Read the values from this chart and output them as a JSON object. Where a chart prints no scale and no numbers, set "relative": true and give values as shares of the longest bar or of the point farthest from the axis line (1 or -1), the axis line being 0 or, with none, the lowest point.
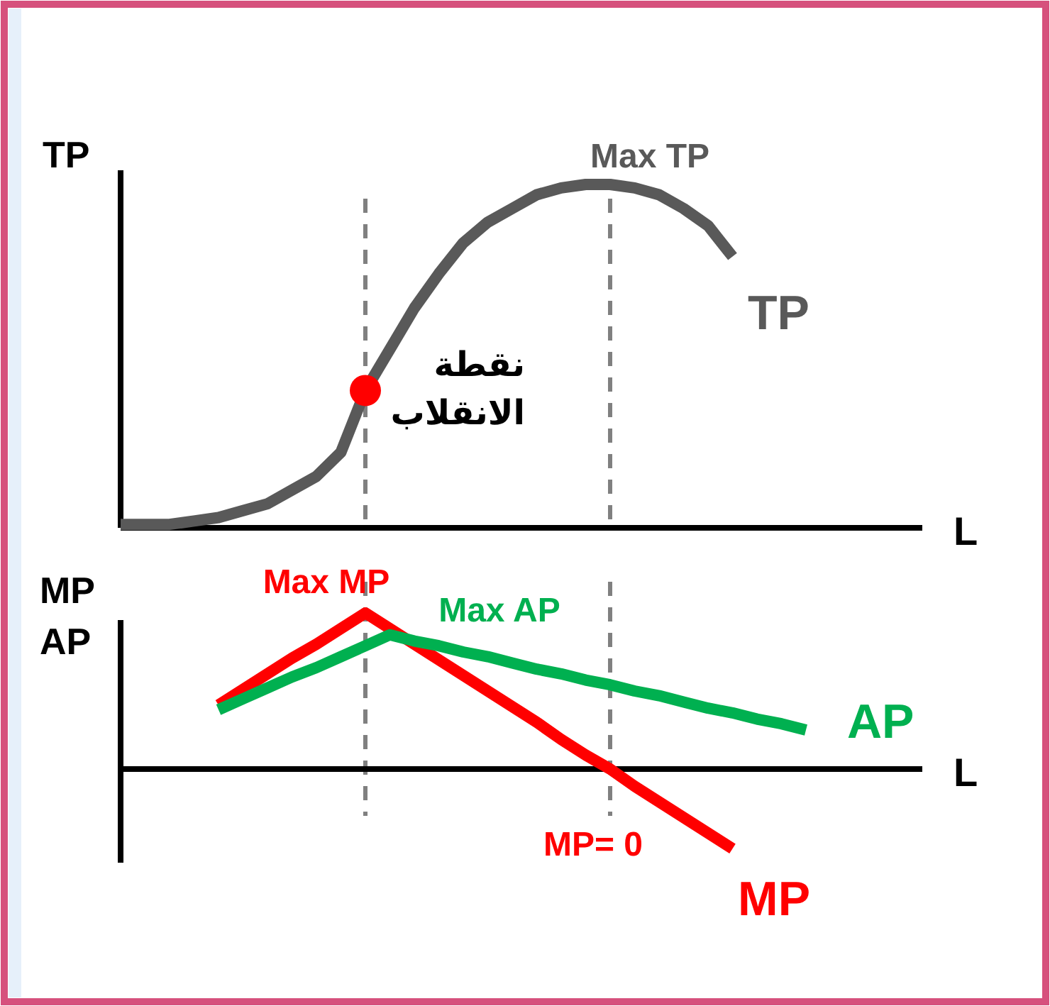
{
  "chart_data": [
    {
      "type": "line",
      "relative": true,
      "ylabel": "TP",
      "xlabel": "L",
      "marker": "none",
      "line_style": "solid",
      "categories": [
        null,
        null,
        null,
        null,
        null,
        null,
        null,
        null,
        null,
        null,
        null,
        null,
        null,
        null,
        null,
        null,
        null,
        null,
        null,
        null,
        null,
        null,
        null,
        null,
        null,
        null,
        null,
        null,
        null,
        null,
        null,
        null,
        null
      ],
      "series": [
        {
          "name": "TP",
          "color": "#595959",
          "values": [
            0.01,
            0.01,
            0.01,
            0.02,
            0.03,
            0.05,
            0.07,
            0.11,
            0.15,
            0.22,
            0.4,
            0.52,
            0.64,
            0.74,
            0.83,
            0.89,
            0.93,
            0.97,
            0.99,
            1,
            1,
            0.99,
            0.97,
            0.93,
            0.88,
            0.79,
            null,
            null,
            null,
            null,
            null,
            null,
            null
          ]
        }
      ],
      "annotations": [
        "Max TP",
        "نقطة الانقلاب"
      ]
    },
    {
      "type": "line",
      "relative": true,
      "ylabel": "MP\nAP",
      "xlabel": "L",
      "marker": "none",
      "line_style": "solid",
      "categories": [
        null,
        null,
        null,
        null,
        null,
        null,
        null,
        null,
        null,
        null,
        null,
        null,
        null,
        null,
        null,
        null,
        null,
        null,
        null,
        null,
        null,
        null,
        null,
        null,
        null,
        null,
        null,
        null,
        null,
        null,
        null,
        null,
        null
      ],
      "series": [
        {
          "name": "MP",
          "color": "#ff0000",
          "values": [
            null,
            null,
            null,
            null,
            0.41,
            0.51,
            0.61,
            0.71,
            0.8,
            0.9,
            1,
            0.9,
            0.8,
            0.7,
            0.6,
            0.5,
            0.4,
            0.3,
            0.19,
            0.09,
            0,
            -0.11,
            -0.21,
            -0.31,
            -0.41,
            -0.51,
            null,
            null,
            null,
            null,
            null,
            null,
            null
          ]
        },
        {
          "name": "AP",
          "color": "#00b050",
          "values": [
            null,
            null,
            null,
            null,
            0.38,
            0.45,
            0.52,
            0.59,
            0.65,
            0.72,
            0.79,
            0.86,
            0.82,
            0.79,
            0.75,
            0.72,
            0.68,
            0.64,
            0.61,
            0.57,
            0.54,
            0.5,
            0.47,
            0.43,
            0.39,
            0.36,
            0.32,
            0.29,
            0.25,
            null,
            null,
            null,
            null
          ]
        }
      ],
      "annotations": [
        "Max MP",
        "Max AP",
        "MP= 0"
      ]
    }
  ]
}
